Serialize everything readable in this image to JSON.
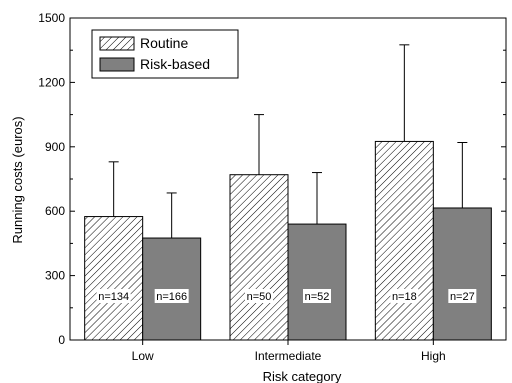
{
  "chart_data": {
    "type": "bar",
    "title": "",
    "xlabel": "Risk category",
    "ylabel": "Running costs (euros)",
    "categories": [
      "Low",
      "Intermediate",
      "High"
    ],
    "ylim": [
      0,
      1500
    ],
    "yticks": [
      0,
      300,
      600,
      900,
      1200,
      1500
    ],
    "legend_position": "top-left",
    "grid": false,
    "series": [
      {
        "name": "Routine",
        "values": [
          575,
          770,
          925
        ],
        "error_upper": [
          830,
          1050,
          1375
        ],
        "sample_sizes": [
          "n=134",
          "n=50",
          "n=18"
        ],
        "fill": "hatched",
        "color": "#ffffff"
      },
      {
        "name": "Risk-based",
        "values": [
          475,
          540,
          615
        ],
        "error_upper": [
          685,
          780,
          920
        ],
        "sample_sizes": [
          "n=166",
          "n=52",
          "n=27"
        ],
        "fill": "solid",
        "color": "#808080"
      }
    ]
  }
}
